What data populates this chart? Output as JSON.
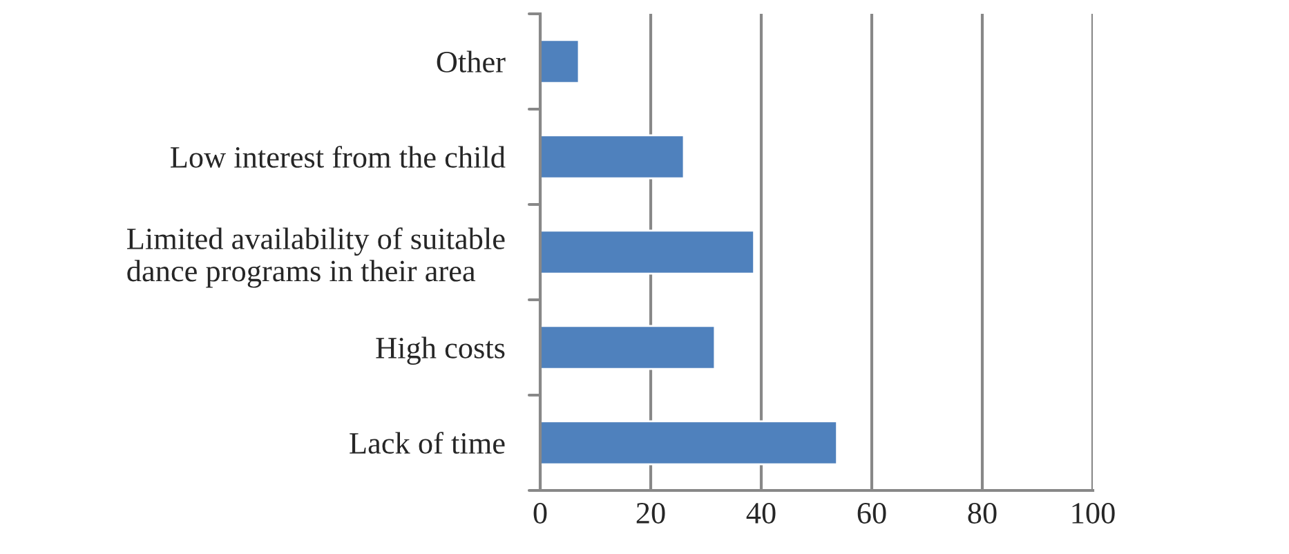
{
  "chart_data": {
    "type": "bar",
    "orientation": "horizontal",
    "categories": [
      "Other",
      "Low interest from the child",
      "Limited availability of suitable\ndance programs in their area",
      "High costs",
      "Lack of time"
    ],
    "values": [
      7,
      26,
      38.7,
      31.6,
      53.7
    ],
    "color": "#4f81bd",
    "xlim": [
      0,
      100
    ],
    "xticks": [
      0,
      20,
      40,
      60,
      80,
      100
    ],
    "grid": "x"
  }
}
